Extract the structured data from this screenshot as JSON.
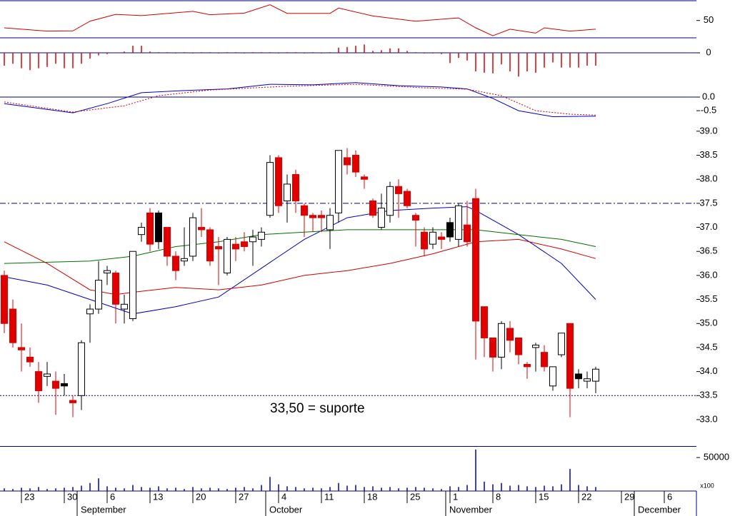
{
  "chart_data": [
    {
      "type": "line",
      "ylim": [
        24,
        80
      ],
      "yticks": [
        50
      ],
      "series": [
        {
          "color": "#d00000",
          "x": [
            0,
            5,
            8,
            10,
            13,
            16,
            22,
            24,
            28,
            31,
            33,
            38,
            39,
            43,
            48,
            53,
            55,
            57,
            59,
            62,
            63,
            66,
            69
          ],
          "values": [
            38,
            32.6,
            33,
            48.8,
            60,
            58,
            64.9,
            59.5,
            62,
            75.7,
            61.7,
            61.7,
            70.3,
            57.4,
            48.8,
            54.2,
            38,
            25.1,
            35.8,
            29.4,
            38,
            32.6,
            35.8
          ]
        }
      ]
    },
    {
      "type": "bar",
      "ylim": [
        -0.4,
        0.2
      ],
      "yticks": [
        0
      ],
      "color": "#e00000",
      "hlines": [
        {
          "value": 0,
          "style": "solid",
          "color": "#000080"
        }
      ],
      "values": [
        -0.2,
        -0.17,
        -0.24,
        -0.27,
        -0.24,
        -0.22,
        -0.17,
        -0.24,
        -0.24,
        -0.17,
        -0.09,
        -0.04,
        -0.02,
        0,
        0.02,
        0.11,
        0.11,
        0.02,
        0.01,
        0.01,
        -0.01,
        0.01,
        -0.01,
        0.01,
        0.01,
        -0.01,
        0.01,
        0.01,
        -0.01,
        0.01,
        0.01,
        0.01,
        -0.01,
        0.01,
        0.01,
        -0.01,
        0.01,
        -0.01,
        0.01,
        0.08,
        0.09,
        0.11,
        0.13,
        0.03,
        0.04,
        0.07,
        0.07,
        0.03,
        0.01,
        -0.01,
        -0.01,
        -0.02,
        -0.16,
        -0.08,
        -0.12,
        -0.29,
        -0.31,
        -0.32,
        -0.18,
        -0.29,
        -0.37,
        -0.29,
        -0.31,
        -0.23,
        -0.15,
        -0.23,
        -0.23,
        -0.23,
        -0.2,
        -0.2
      ]
    },
    {
      "type": "line",
      "ylim": [
        -0.76,
        0.63
      ],
      "yticks": [
        {
          "value": 0,
          "label": "0.0"
        },
        -0.5
      ],
      "hlines": [
        {
          "value": 0,
          "style": "solid",
          "color": "#000080"
        }
      ],
      "series": [
        {
          "color": "#0000c0",
          "x": [
            0,
            8,
            12,
            16,
            21,
            26,
            31,
            36,
            41,
            46,
            51,
            54,
            57,
            60,
            64,
            69
          ],
          "values": [
            -0.24,
            -0.58,
            -0.24,
            0.16,
            0.24,
            0.3,
            0.47,
            0.45,
            0.53,
            0.42,
            0.37,
            0.3,
            -0.05,
            -0.5,
            -0.72,
            -0.7
          ]
        },
        {
          "color": "#d00000",
          "dash": true,
          "x": [
            0,
            8,
            14,
            18,
            24,
            33,
            41,
            49,
            54,
            58,
            62,
            66,
            69
          ],
          "values": [
            -0.18,
            -0.55,
            -0.32,
            0.05,
            0.26,
            0.4,
            0.47,
            0.34,
            0.29,
            0.05,
            -0.5,
            -0.63,
            -0.66
          ]
        }
      ]
    },
    {
      "type": "candlestick",
      "ylim": [
        32.45,
        39.28
      ],
      "yticks": [
        {
          "value": 33,
          "label": "33.0"
        },
        33.5,
        {
          "value": 34,
          "label": "34.0"
        },
        34.5,
        {
          "value": 35,
          "label": "35.0"
        },
        35.5,
        {
          "value": 36,
          "label": "36.0"
        },
        36.5,
        {
          "value": 37,
          "label": "37.0"
        },
        37.5,
        {
          "value": 38,
          "label": "38.0"
        },
        38.5,
        {
          "value": 39,
          "label": "39.0"
        }
      ],
      "open": [
        36.0,
        35.3,
        34.5,
        34.3,
        34.0,
        33.9,
        33.8,
        33.75,
        33.4,
        33.5,
        35.2,
        35.3,
        36.05,
        36.05,
        35.3,
        35.1,
        36.85,
        37.3,
        36.7,
        37.0,
        36.4,
        36.3,
        36.4,
        37.0,
        36.95,
        36.6,
        36.05,
        36.65,
        36.7,
        36.7,
        36.75,
        37.25,
        38.45,
        37.55,
        38.1,
        37.45,
        37.25,
        37.25,
        36.95,
        37.3,
        38.45,
        38.5,
        38.05,
        37.55,
        37.0,
        37.25,
        37.85,
        37.75,
        37.25,
        36.9,
        36.65,
        36.8,
        36.8,
        36.75,
        37.05,
        37.6,
        35.35,
        34.7,
        34.3,
        34.9,
        34.7,
        34.15,
        34.5,
        34.4,
        33.7,
        34.35,
        35.0,
        33.85,
        33.8,
        33.8
      ],
      "high": [
        36.1,
        35.5,
        35.0,
        34.5,
        34.2,
        34.2,
        34.0,
        33.95,
        33.5,
        34.65,
        35.4,
        36.3,
        36.2,
        36.1,
        35.6,
        36.5,
        37.1,
        37.4,
        37.35,
        37.0,
        36.5,
        37.0,
        37.3,
        37.4,
        37.0,
        36.8,
        36.8,
        36.8,
        36.9,
        36.95,
        37.0,
        38.5,
        38.5,
        38.1,
        38.2,
        37.5,
        37.3,
        37.35,
        37.4,
        38.6,
        38.65,
        38.6,
        38.1,
        37.6,
        37.7,
        37.95,
        38.0,
        37.8,
        37.3,
        37.0,
        37.0,
        36.9,
        37.2,
        37.5,
        37.55,
        37.8,
        35.35,
        34.7,
        35.05,
        35.05,
        34.7,
        34.2,
        34.6,
        34.55,
        34.1,
        34.8,
        35.0,
        34.05,
        34.0,
        34.1
      ],
      "low": [
        34.8,
        34.5,
        34.0,
        34.1,
        33.35,
        33.7,
        33.1,
        33.5,
        33.05,
        33.2,
        34.6,
        35.2,
        35.8,
        35.0,
        35.0,
        35.05,
        36.7,
        36.5,
        36.55,
        36.2,
        35.9,
        36.2,
        36.3,
        36.8,
        36.2,
        35.8,
        36.0,
        36.3,
        36.5,
        36.2,
        36.6,
        37.2,
        37.3,
        37.1,
        37.3,
        36.8,
        36.9,
        36.9,
        36.55,
        37.1,
        38.1,
        38.05,
        37.8,
        37.2,
        36.95,
        37.1,
        37.2,
        37.4,
        36.6,
        36.4,
        36.55,
        36.55,
        36.7,
        36.6,
        36.6,
        34.25,
        34.3,
        34.0,
        34.05,
        34.4,
        34.15,
        33.85,
        34.0,
        34.0,
        33.6,
        34.3,
        33.05,
        33.65,
        33.65,
        33.55
      ],
      "close": [
        35.0,
        34.6,
        34.45,
        34.2,
        33.6,
        33.95,
        33.65,
        33.7,
        33.35,
        34.6,
        35.3,
        35.9,
        36.1,
        35.4,
        35.4,
        36.5,
        37.0,
        36.65,
        37.3,
        36.4,
        36.1,
        36.35,
        37.2,
        36.95,
        36.3,
        36.55,
        36.75,
        36.55,
        36.6,
        36.8,
        36.9,
        38.35,
        37.45,
        37.9,
        37.55,
        37.25,
        37.2,
        37.2,
        37.25,
        38.6,
        38.3,
        38.15,
        38.0,
        37.25,
        37.4,
        37.85,
        37.7,
        37.45,
        37.15,
        36.55,
        36.9,
        36.75,
        37.1,
        37.45,
        36.7,
        35.05,
        34.7,
        34.3,
        35.0,
        34.65,
        34.35,
        34.1,
        34.55,
        34.1,
        34.1,
        34.8,
        33.65,
        33.95,
        33.85,
        34.05
      ],
      "colors": [
        "#e00000",
        "#e00000",
        "#e00000",
        "#e00000",
        "#e00000",
        "#ffffff",
        "#e00000",
        "#000000",
        "#e00000",
        "#ffffff",
        "#ffffff",
        "#ffffff",
        "#ffffff",
        "#e00000",
        "#ffffff",
        "#ffffff",
        "#ffffff",
        "#e00000",
        "#000000",
        "#e00000",
        "#e00000",
        "#ffffff",
        "#ffffff",
        "#e00000",
        "#e00000",
        "#e00000",
        "#ffffff",
        "#e00000",
        "#e00000",
        "#ffffff",
        "#ffffff",
        "#ffffff",
        "#e00000",
        "#ffffff",
        "#e00000",
        "#e00000",
        "#e00000",
        "#e00000",
        "#ffffff",
        "#ffffff",
        "#e00000",
        "#e00000",
        "#e00000",
        "#e00000",
        "#ffffff",
        "#ffffff",
        "#e00000",
        "#e00000",
        "#e00000",
        "#e00000",
        "#ffffff",
        "#e00000",
        "#000000",
        "#ffffff",
        "#e00000",
        "#e00000",
        "#e00000",
        "#e00000",
        "#ffffff",
        "#e00000",
        "#e00000",
        "#e00000",
        "#ffffff",
        "#e00000",
        "#ffffff",
        "#ffffff",
        "#e00000",
        "#000000",
        "#ffffff",
        "#ffffff"
      ],
      "series": [
        {
          "color": "#0000c0",
          "x": [
            0,
            5,
            10,
            15,
            20,
            25,
            30,
            35,
            40,
            45,
            50,
            54,
            55,
            60,
            65,
            69
          ],
          "values": [
            35.97,
            35.8,
            35.5,
            35.2,
            35.35,
            35.55,
            36.15,
            36.75,
            37.2,
            37.35,
            37.4,
            37.43,
            37.35,
            36.85,
            36.25,
            35.5
          ]
        },
        {
          "color": "#d00000",
          "x": [
            0,
            5,
            10,
            13,
            15,
            20,
            25,
            30,
            35,
            40,
            45,
            50,
            55,
            60,
            65,
            69
          ],
          "values": [
            36.7,
            36.25,
            35.7,
            35.6,
            35.65,
            35.75,
            35.7,
            35.8,
            36.0,
            36.1,
            36.25,
            36.45,
            36.7,
            36.75,
            36.55,
            36.35
          ]
        },
        {
          "color": "#007000",
          "x": [
            0,
            10,
            15,
            20,
            25,
            30,
            35,
            40,
            45,
            50,
            55,
            60,
            65,
            69
          ],
          "values": [
            36.25,
            36.3,
            36.4,
            36.6,
            36.7,
            36.85,
            36.9,
            36.95,
            36.95,
            36.95,
            36.95,
            36.85,
            36.75,
            36.6
          ]
        }
      ],
      "hlines": [
        {
          "value": 37.5,
          "style": "dashdot",
          "color": "#000080"
        },
        {
          "value": 33.5,
          "style": "dotted",
          "color": "#000080"
        }
      ],
      "annotation": "33,50 = suporte",
      "annotation_color": "#0000e0"
    },
    {
      "type": "bar",
      "ylim": [
        0,
        65000
      ],
      "yticks": [
        50000
      ],
      "color": "#0000c0",
      "unit_label": "x100",
      "values": [
        4000,
        3000,
        5000,
        4000,
        6000,
        3000,
        4000,
        5000,
        6000,
        8000,
        12000,
        19000,
        7000,
        5000,
        4000,
        9000,
        6000,
        5000,
        7000,
        4000,
        5000,
        3000,
        6000,
        4000,
        5000,
        4000,
        3000,
        5000,
        6000,
        4000,
        9000,
        21000,
        10000,
        7000,
        6000,
        4000,
        5000,
        4000,
        6000,
        12000,
        8000,
        9000,
        6000,
        7000,
        5000,
        6000,
        4000,
        5000,
        6000,
        5000,
        4000,
        3000,
        7000,
        6000,
        9000,
        62000,
        14000,
        10000,
        12000,
        8000,
        9000,
        7000,
        6000,
        8000,
        7000,
        10000,
        33000,
        9000,
        7000,
        6000
      ]
    }
  ],
  "x_axis": {
    "xlim": [
      -0.5,
      80.75
    ],
    "xticks": [
      {
        "value": 2,
        "label": "23"
      },
      {
        "value": 7,
        "label": "30"
      },
      {
        "value": 12,
        "label": "6"
      },
      {
        "value": 17,
        "label": "13"
      },
      {
        "value": 22,
        "label": "20"
      },
      {
        "value": 27,
        "label": "27"
      },
      {
        "value": 32,
        "label": "4"
      },
      {
        "value": 37,
        "label": "11"
      },
      {
        "value": 42,
        "label": "18"
      },
      {
        "value": 47,
        "label": "25"
      },
      {
        "value": 52,
        "label": "1"
      },
      {
        "value": 57,
        "label": "8"
      },
      {
        "value": 62,
        "label": "15"
      },
      {
        "value": 67,
        "label": "22"
      },
      {
        "value": 72,
        "label": "29"
      },
      {
        "value": 77,
        "label": "6"
      }
    ],
    "month_ticks": [
      {
        "value": 8.5,
        "label": "September"
      },
      {
        "value": 30.5,
        "label": "October"
      },
      {
        "value": 51.5,
        "label": "November"
      },
      {
        "value": 73.5,
        "label": "December"
      }
    ]
  }
}
